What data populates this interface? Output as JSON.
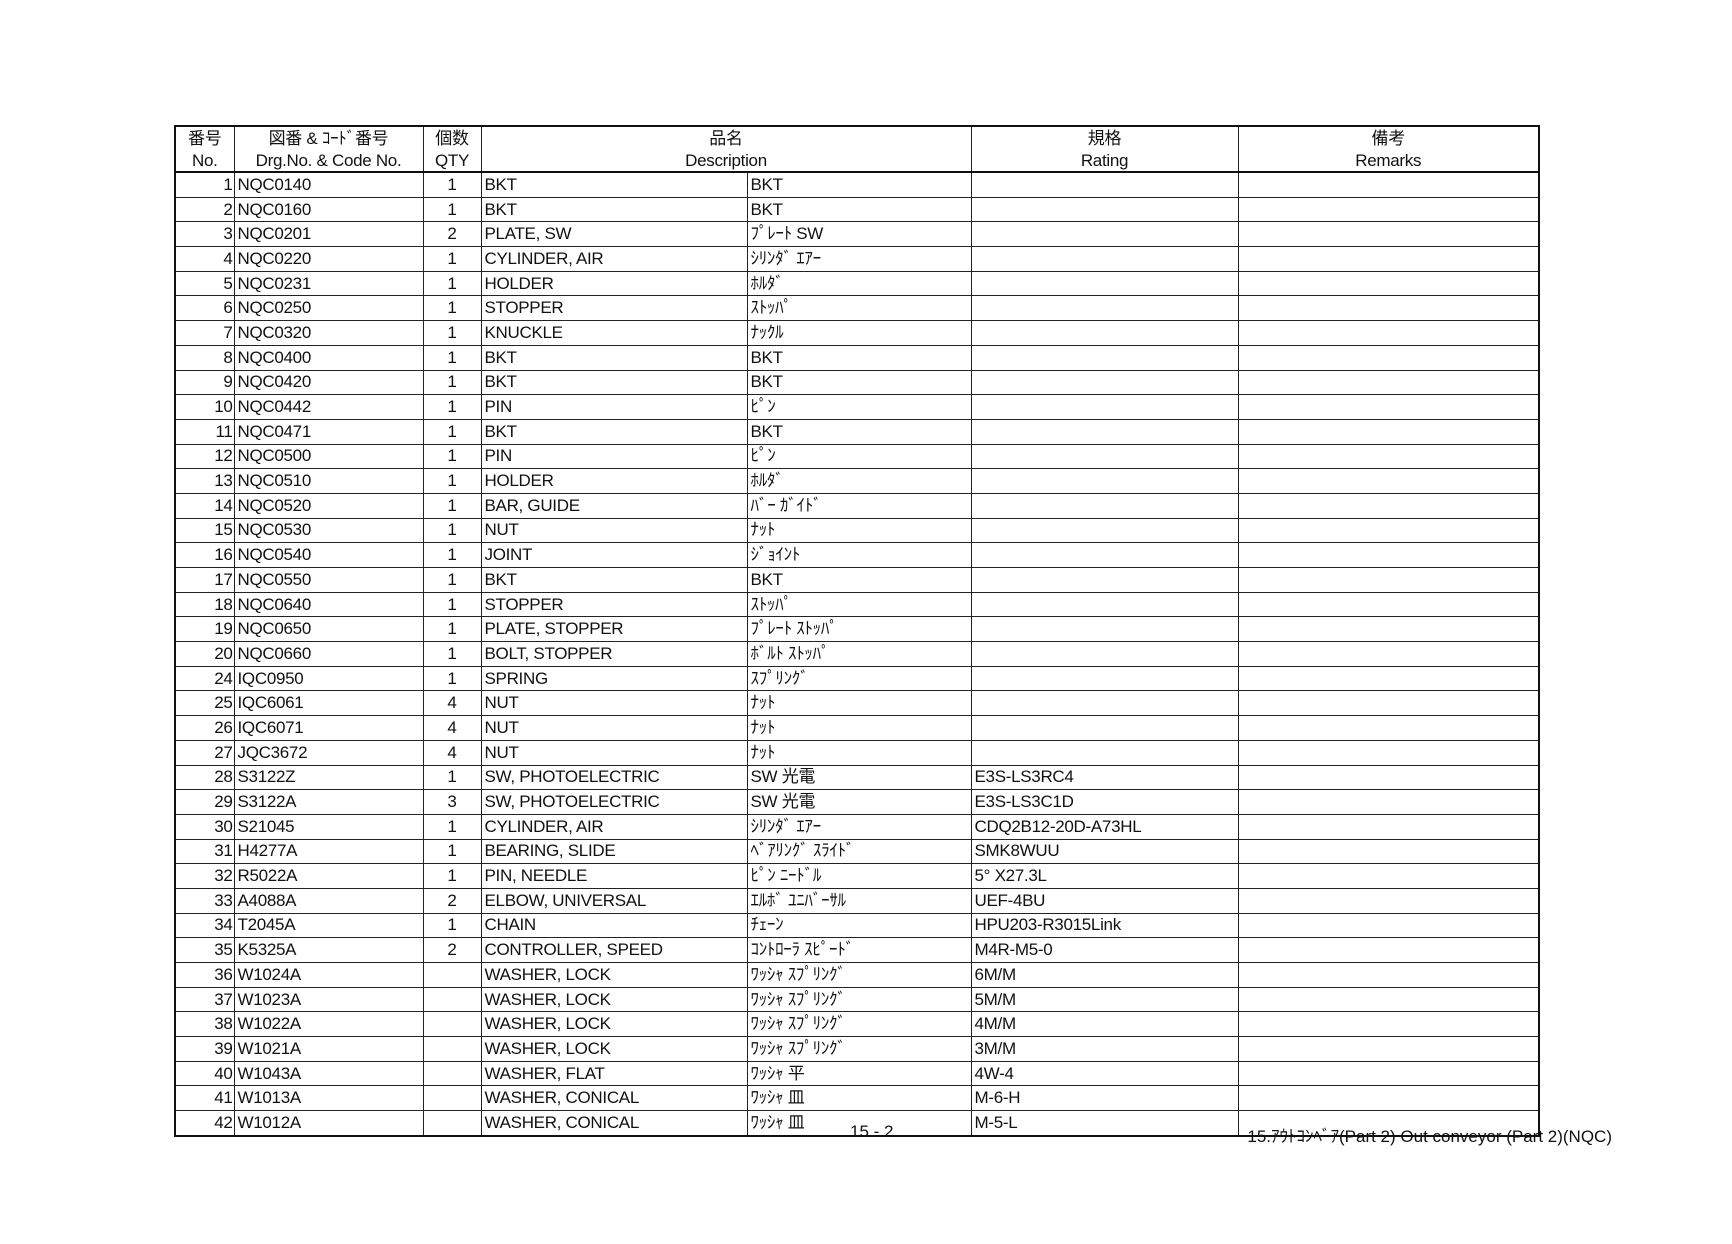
{
  "header": {
    "no_jp": "番号",
    "no_en": "No.",
    "code_jp": "図番 & ｺｰﾄﾞ番号",
    "code_en": "Drg.No. & Code No.",
    "qty_jp": "個数",
    "qty_en": "QTY",
    "desc_jp": "品名",
    "desc_en": "Description",
    "rating_jp": "規格",
    "rating_en": "Rating",
    "remarks_jp": "備考",
    "remarks_en": "Remarks"
  },
  "rows": [
    {
      "no": "1",
      "code": "NQC0140",
      "qty": "1",
      "desc_en": "BKT",
      "desc_jp": "BKT",
      "rating": "",
      "remarks": ""
    },
    {
      "no": "2",
      "code": "NQC0160",
      "qty": "1",
      "desc_en": "BKT",
      "desc_jp": "BKT",
      "rating": "",
      "remarks": ""
    },
    {
      "no": "3",
      "code": "NQC0201",
      "qty": "2",
      "desc_en": "PLATE, SW",
      "desc_jp": "ﾌﾟﾚｰﾄ SW",
      "rating": "",
      "remarks": ""
    },
    {
      "no": "4",
      "code": "NQC0220",
      "qty": "1",
      "desc_en": "CYLINDER, AIR",
      "desc_jp": "ｼﾘﾝﾀﾞ ｴｱｰ",
      "rating": "",
      "remarks": ""
    },
    {
      "no": "5",
      "code": "NQC0231",
      "qty": "1",
      "desc_en": "HOLDER",
      "desc_jp": "ﾎﾙﾀﾞ",
      "rating": "",
      "remarks": ""
    },
    {
      "no": "6",
      "code": "NQC0250",
      "qty": "1",
      "desc_en": "STOPPER",
      "desc_jp": "ｽﾄｯﾊﾟ",
      "rating": "",
      "remarks": ""
    },
    {
      "no": "7",
      "code": "NQC0320",
      "qty": "1",
      "desc_en": "KNUCKLE",
      "desc_jp": "ﾅｯｸﾙ",
      "rating": "",
      "remarks": ""
    },
    {
      "no": "8",
      "code": "NQC0400",
      "qty": "1",
      "desc_en": "BKT",
      "desc_jp": "BKT",
      "rating": "",
      "remarks": ""
    },
    {
      "no": "9",
      "code": "NQC0420",
      "qty": "1",
      "desc_en": "BKT",
      "desc_jp": "BKT",
      "rating": "",
      "remarks": ""
    },
    {
      "no": "10",
      "code": "NQC0442",
      "qty": "1",
      "desc_en": "PIN",
      "desc_jp": "ﾋﾟﾝ",
      "rating": "",
      "remarks": ""
    },
    {
      "no": "11",
      "code": "NQC0471",
      "qty": "1",
      "desc_en": "BKT",
      "desc_jp": "BKT",
      "rating": "",
      "remarks": ""
    },
    {
      "no": "12",
      "code": "NQC0500",
      "qty": "1",
      "desc_en": "PIN",
      "desc_jp": "ﾋﾟﾝ",
      "rating": "",
      "remarks": ""
    },
    {
      "no": "13",
      "code": "NQC0510",
      "qty": "1",
      "desc_en": "HOLDER",
      "desc_jp": "ﾎﾙﾀﾞ",
      "rating": "",
      "remarks": ""
    },
    {
      "no": "14",
      "code": "NQC0520",
      "qty": "1",
      "desc_en": "BAR, GUIDE",
      "desc_jp": "ﾊﾞｰ ｶﾞｲﾄﾞ",
      "rating": "",
      "remarks": ""
    },
    {
      "no": "15",
      "code": "NQC0530",
      "qty": "1",
      "desc_en": "NUT",
      "desc_jp": "ﾅｯﾄ",
      "rating": "",
      "remarks": ""
    },
    {
      "no": "16",
      "code": "NQC0540",
      "qty": "1",
      "desc_en": "JOINT",
      "desc_jp": "ｼﾞｮｲﾝﾄ",
      "rating": "",
      "remarks": ""
    },
    {
      "no": "17",
      "code": "NQC0550",
      "qty": "1",
      "desc_en": "BKT",
      "desc_jp": "BKT",
      "rating": "",
      "remarks": ""
    },
    {
      "no": "18",
      "code": "NQC0640",
      "qty": "1",
      "desc_en": "STOPPER",
      "desc_jp": "ｽﾄｯﾊﾟ",
      "rating": "",
      "remarks": ""
    },
    {
      "no": "19",
      "code": "NQC0650",
      "qty": "1",
      "desc_en": "PLATE, STOPPER",
      "desc_jp": "ﾌﾟﾚｰﾄ ｽﾄｯﾊﾟ",
      "rating": "",
      "remarks": ""
    },
    {
      "no": "20",
      "code": "NQC0660",
      "qty": "1",
      "desc_en": "BOLT, STOPPER",
      "desc_jp": "ﾎﾞﾙﾄ ｽﾄｯﾊﾟ",
      "rating": "",
      "remarks": ""
    },
    {
      "no": "24",
      "code": "IQC0950",
      "qty": "1",
      "desc_en": "SPRING",
      "desc_jp": "ｽﾌﾟﾘﾝｸﾞ",
      "rating": "",
      "remarks": ""
    },
    {
      "no": "25",
      "code": "IQC6061",
      "qty": "4",
      "desc_en": "NUT",
      "desc_jp": "ﾅｯﾄ",
      "rating": "",
      "remarks": ""
    },
    {
      "no": "26",
      "code": "IQC6071",
      "qty": "4",
      "desc_en": "NUT",
      "desc_jp": "ﾅｯﾄ",
      "rating": "",
      "remarks": ""
    },
    {
      "no": "27",
      "code": "JQC3672",
      "qty": "4",
      "desc_en": "NUT",
      "desc_jp": "ﾅｯﾄ",
      "rating": "",
      "remarks": ""
    },
    {
      "no": "28",
      "code": "S3122Z",
      "qty": "1",
      "desc_en": "SW, PHOTOELECTRIC",
      "desc_jp": "SW 光電",
      "rating": "E3S-LS3RC4",
      "remarks": ""
    },
    {
      "no": "29",
      "code": "S3122A",
      "qty": "3",
      "desc_en": "SW, PHOTOELECTRIC",
      "desc_jp": "SW 光電",
      "rating": "E3S-LS3C1D",
      "remarks": ""
    },
    {
      "no": "30",
      "code": "S21045",
      "qty": "1",
      "desc_en": "CYLINDER, AIR",
      "desc_jp": "ｼﾘﾝﾀﾞ ｴｱｰ",
      "rating": "CDQ2B12-20D-A73HL",
      "remarks": ""
    },
    {
      "no": "31",
      "code": "H4277A",
      "qty": "1",
      "desc_en": "BEARING, SLIDE",
      "desc_jp": "ﾍﾞｱﾘﾝｸﾞ ｽﾗｲﾄﾞ",
      "rating": "SMK8WUU",
      "remarks": ""
    },
    {
      "no": "32",
      "code": "R5022A",
      "qty": "1",
      "desc_en": "PIN, NEEDLE",
      "desc_jp": "ﾋﾟﾝ ﾆｰﾄﾞﾙ",
      "rating": "5° X27.3L",
      "remarks": ""
    },
    {
      "no": "33",
      "code": "A4088A",
      "qty": "2",
      "desc_en": "ELBOW, UNIVERSAL",
      "desc_jp": "ｴﾙﾎﾞ ﾕﾆﾊﾞｰｻﾙ",
      "rating": "UEF-4BU",
      "remarks": ""
    },
    {
      "no": "34",
      "code": "T2045A",
      "qty": "1",
      "desc_en": "CHAIN",
      "desc_jp": "ﾁｪｰﾝ",
      "rating": "HPU203-R3015Link",
      "remarks": ""
    },
    {
      "no": "35",
      "code": "K5325A",
      "qty": "2",
      "desc_en": "CONTROLLER, SPEED",
      "desc_jp": "ｺﾝﾄﾛｰﾗ ｽﾋﾟｰﾄﾞ",
      "rating": "M4R-M5-0",
      "remarks": ""
    },
    {
      "no": "36",
      "code": "W1024A",
      "qty": "",
      "desc_en": "WASHER, LOCK",
      "desc_jp": "ﾜｯｼｬ ｽﾌﾟﾘﾝｸﾞ",
      "rating": "6M/M",
      "remarks": ""
    },
    {
      "no": "37",
      "code": "W1023A",
      "qty": "",
      "desc_en": "WASHER, LOCK",
      "desc_jp": "ﾜｯｼｬ ｽﾌﾟﾘﾝｸﾞ",
      "rating": "5M/M",
      "remarks": ""
    },
    {
      "no": "38",
      "code": "W1022A",
      "qty": "",
      "desc_en": "WASHER, LOCK",
      "desc_jp": "ﾜｯｼｬ ｽﾌﾟﾘﾝｸﾞ",
      "rating": "4M/M",
      "remarks": ""
    },
    {
      "no": "39",
      "code": "W1021A",
      "qty": "",
      "desc_en": "WASHER, LOCK",
      "desc_jp": "ﾜｯｼｬ ｽﾌﾟﾘﾝｸﾞ",
      "rating": "3M/M",
      "remarks": ""
    },
    {
      "no": "40",
      "code": "W1043A",
      "qty": "",
      "desc_en": "WASHER, FLAT",
      "desc_jp": "ﾜｯｼｬ 平",
      "rating": "4W-4",
      "remarks": ""
    },
    {
      "no": "41",
      "code": "W1013A",
      "qty": "",
      "desc_en": "WASHER, CONICAL",
      "desc_jp": "ﾜｯｼｬ 皿",
      "rating": "M-6-H",
      "remarks": ""
    },
    {
      "no": "42",
      "code": "W1012A",
      "qty": "",
      "desc_en": "WASHER, CONICAL",
      "desc_jp": "ﾜｯｼｬ 皿",
      "rating": "M-5-L",
      "remarks": ""
    }
  ],
  "footer": {
    "page": "15 - 2",
    "title": "15.ｱｳﾄｺﾝﾍﾞｱ(Part 2) Out conveyor (Part 2)(NQC)"
  }
}
